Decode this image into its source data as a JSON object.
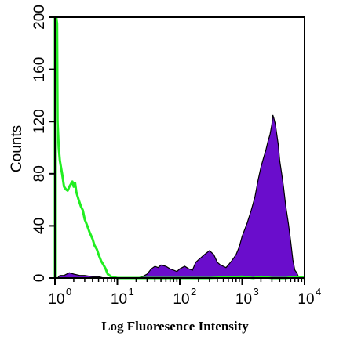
{
  "chart_data": {
    "type": "area",
    "title": "",
    "xlabel": "Log Fluoresence Intensity",
    "ylabel": "Counts",
    "x_scale": "log",
    "xlim": [
      1,
      10000
    ],
    "ylim": [
      0,
      200
    ],
    "x_ticks": [
      {
        "value": 1,
        "base": "10",
        "exp": "0"
      },
      {
        "value": 10,
        "base": "10",
        "exp": "1"
      },
      {
        "value": 100,
        "base": "10",
        "exp": "2"
      },
      {
        "value": 1000,
        "base": "10",
        "exp": "3"
      },
      {
        "value": 10000,
        "base": "10",
        "exp": "4"
      }
    ],
    "y_ticks": [
      "0",
      "40",
      "80",
      "120",
      "160",
      "200"
    ],
    "grid": false,
    "legend": "none",
    "series": [
      {
        "style": "filled",
        "color": "#6a0dcc",
        "points": [
          [
            1.1,
            0
          ],
          [
            1.2,
            2
          ],
          [
            1.4,
            2
          ],
          [
            1.7,
            4
          ],
          [
            2.0,
            3
          ],
          [
            2.5,
            2
          ],
          [
            3.0,
            2
          ],
          [
            4.0,
            1
          ],
          [
            5.0,
            1
          ],
          [
            6.0,
            0
          ],
          [
            10,
            0
          ],
          [
            20,
            0
          ],
          [
            25,
            1
          ],
          [
            30,
            3
          ],
          [
            35,
            7
          ],
          [
            40,
            9
          ],
          [
            45,
            8
          ],
          [
            50,
            10
          ],
          [
            60,
            9
          ],
          [
            70,
            7
          ],
          [
            80,
            6
          ],
          [
            90,
            5
          ],
          [
            100,
            7
          ],
          [
            120,
            9
          ],
          [
            140,
            7
          ],
          [
            160,
            6
          ],
          [
            180,
            12
          ],
          [
            200,
            14
          ],
          [
            250,
            18
          ],
          [
            300,
            21
          ],
          [
            350,
            18
          ],
          [
            400,
            12
          ],
          [
            450,
            10
          ],
          [
            500,
            9
          ],
          [
            550,
            8
          ],
          [
            600,
            10
          ],
          [
            700,
            14
          ],
          [
            800,
            18
          ],
          [
            900,
            24
          ],
          [
            1000,
            32
          ],
          [
            1200,
            42
          ],
          [
            1400,
            52
          ],
          [
            1600,
            62
          ],
          [
            1800,
            75
          ],
          [
            2000,
            85
          ],
          [
            2200,
            92
          ],
          [
            2400,
            98
          ],
          [
            2600,
            105
          ],
          [
            2800,
            110
          ],
          [
            3000,
            118
          ],
          [
            3100,
            125
          ],
          [
            3200,
            123
          ],
          [
            3400,
            118
          ],
          [
            3600,
            110
          ],
          [
            3800,
            102
          ],
          [
            4000,
            90
          ],
          [
            4300,
            80
          ],
          [
            4600,
            70
          ],
          [
            5000,
            55
          ],
          [
            5500,
            42
          ],
          [
            6000,
            28
          ],
          [
            6500,
            14
          ],
          [
            7000,
            6
          ],
          [
            7500,
            4
          ],
          [
            8000,
            1
          ],
          [
            9000,
            0
          ]
        ]
      },
      {
        "style": "line",
        "color": "#22ee22",
        "points": [
          [
            1.0,
            0
          ],
          [
            1.0,
            200
          ],
          [
            1.05,
            200
          ],
          [
            1.08,
            195
          ],
          [
            1.1,
            120
          ],
          [
            1.15,
            100
          ],
          [
            1.2,
            90
          ],
          [
            1.3,
            80
          ],
          [
            1.4,
            70
          ],
          [
            1.5,
            68
          ],
          [
            1.6,
            67
          ],
          [
            1.7,
            70
          ],
          [
            1.8,
            72
          ],
          [
            1.9,
            74
          ],
          [
            2.0,
            70
          ],
          [
            2.1,
            73
          ],
          [
            2.2,
            66
          ],
          [
            2.4,
            60
          ],
          [
            2.6,
            55
          ],
          [
            2.8,
            52
          ],
          [
            3.0,
            45
          ],
          [
            3.3,
            40
          ],
          [
            3.6,
            35
          ],
          [
            4.0,
            30
          ],
          [
            4.3,
            25
          ],
          [
            4.7,
            22
          ],
          [
            5.0,
            18
          ],
          [
            5.5,
            13
          ],
          [
            6.0,
            10
          ],
          [
            6.5,
            7
          ],
          [
            7.0,
            3
          ],
          [
            8.0,
            1
          ],
          [
            10,
            0
          ],
          [
            30,
            0
          ],
          [
            100,
            0
          ],
          [
            300,
            0
          ],
          [
            1000,
            1
          ],
          [
            1500,
            0
          ],
          [
            2000,
            1
          ],
          [
            3000,
            0
          ],
          [
            5000,
            0
          ],
          [
            8000,
            1
          ],
          [
            10000,
            0
          ]
        ]
      }
    ]
  }
}
